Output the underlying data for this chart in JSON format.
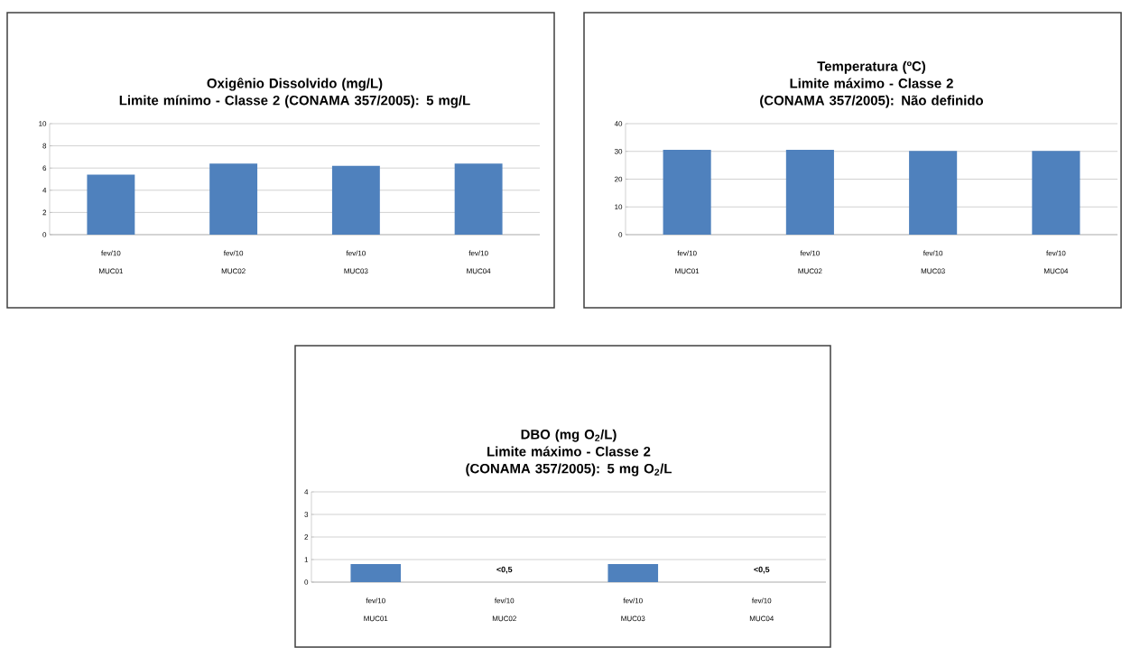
{
  "chart_data": [
    {
      "type": "bar",
      "title": "Oxigênio Dissolvido (mg/L)",
      "subtitle": "Limite mínimo - Classe 2 (CONAMA 357/2005): 5 mg/L",
      "categories": [
        "MUC01",
        "MUC02",
        "MUC03",
        "MUC04"
      ],
      "values": [
        5.4,
        6.4,
        6.2,
        6.4
      ],
      "color": "#4f81bd",
      "ylim": [
        0,
        10
      ],
      "yticks": [
        0,
        2,
        4,
        6,
        8,
        10
      ],
      "grid": "y",
      "annotations": [
        "fev/10",
        "fev/10",
        "fev/10",
        "fev/10"
      ]
    },
    {
      "type": "bar",
      "title": "Temperatura (ºC)",
      "subtitle": "Limite máximo - Classe 2 (CONAMA 357/2005):  Não definido",
      "categories": [
        "MUC01",
        "MUC02",
        "MUC03",
        "MUC04"
      ],
      "values": [
        30.6,
        30.6,
        30.2,
        30.2
      ],
      "color": "#4f81bd",
      "ylim": [
        0,
        40
      ],
      "yticks": [
        0,
        10,
        20,
        30,
        40
      ],
      "grid": "y",
      "annotations": [
        "fev/10",
        "fev/10",
        "fev/10",
        "fev/10"
      ]
    },
    {
      "type": "bar",
      "title": "DBO (mg O$_{2}$/L)",
      "subtitle": "Limite máximo - Classe 2 (CONAMA 357/2005): 5 mg O$_{2}$/L",
      "categories": [
        "MUC01",
        "MUC02",
        "MUC03",
        "MUC04"
      ],
      "values": [
        0.8,
        null,
        0.8,
        null
      ],
      "value_labels": [
        null,
        "<0,5",
        null,
        "<0,5"
      ],
      "color": "#4f81bd",
      "ylim": [
        0,
        4
      ],
      "yticks": [
        0,
        1,
        2,
        3,
        4
      ],
      "grid": "y",
      "annotations": [
        "fev/10",
        "fev/10",
        "fev/10",
        "fev/10"
      ]
    }
  ]
}
